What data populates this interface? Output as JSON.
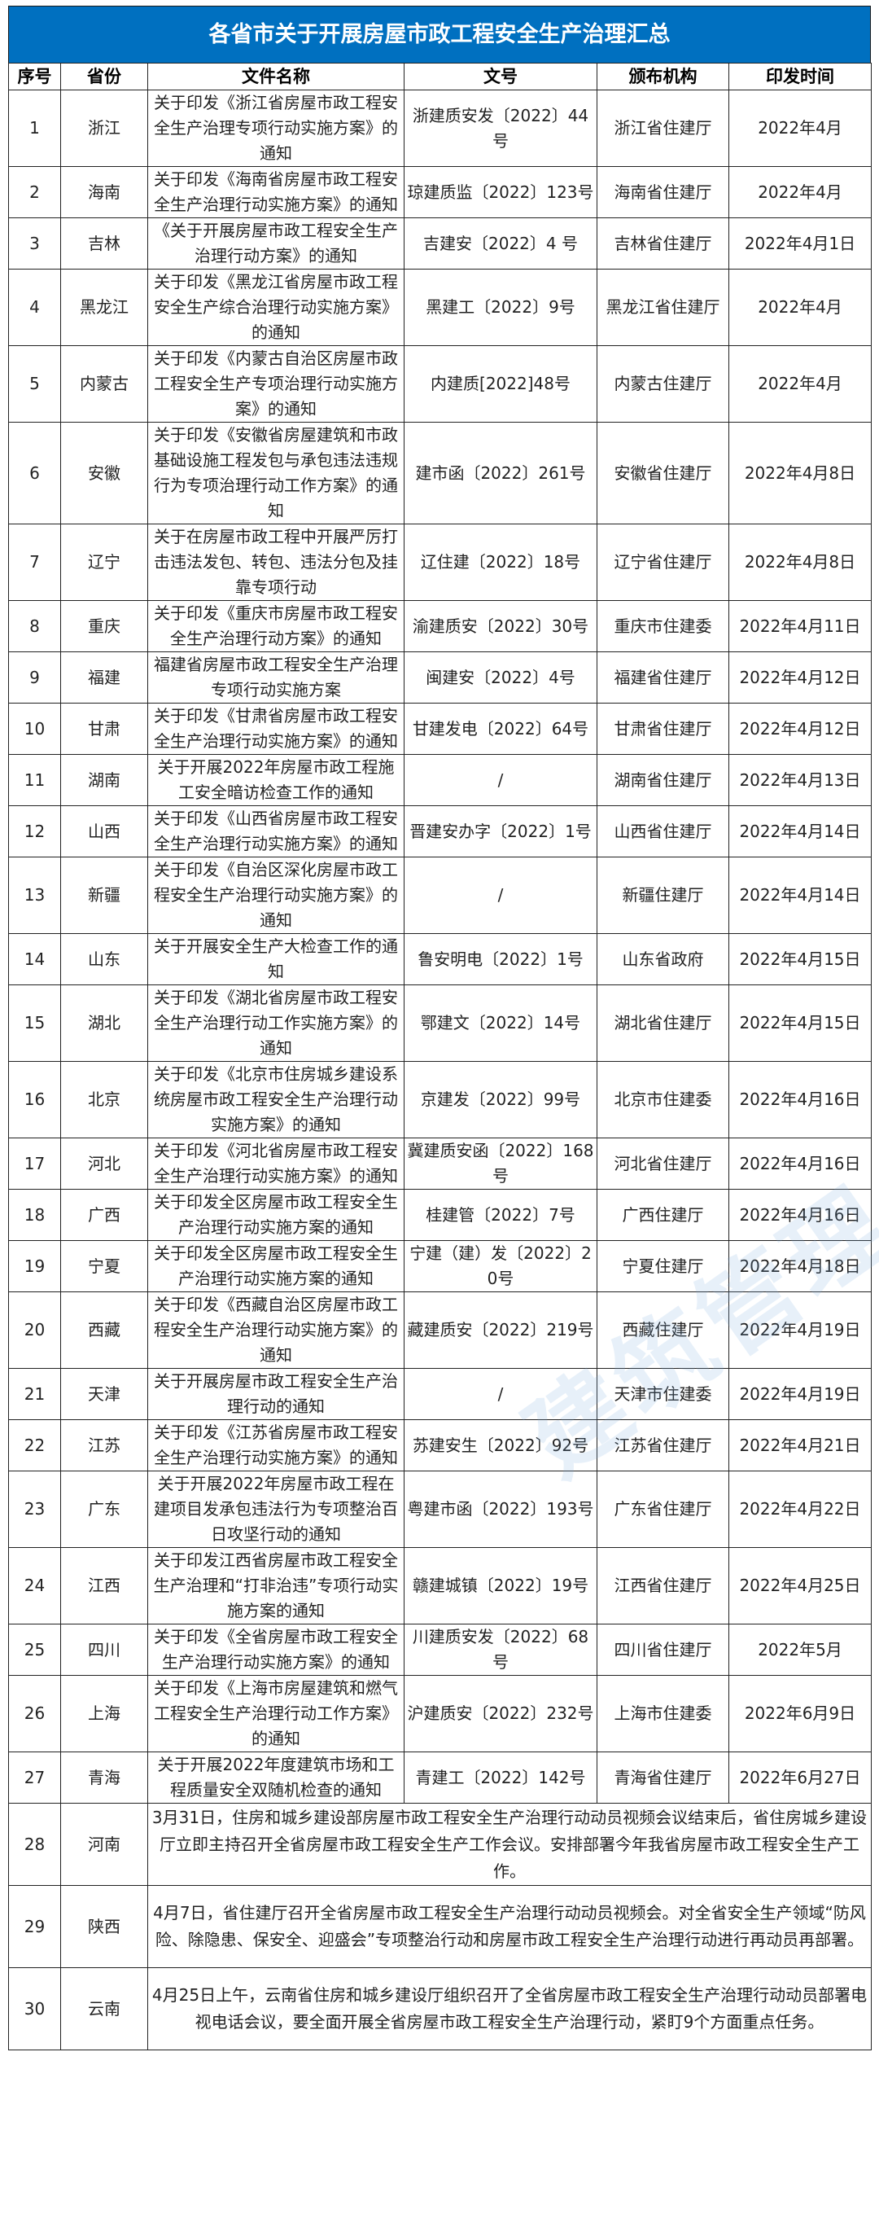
{
  "title": "各省市关于开展房屋市政工程安全生产治理汇总",
  "watermark": "建筑管理",
  "colors": {
    "title_bg": "#0070C0",
    "title_text": "#FFFFFF",
    "border": "#222222"
  },
  "columns": [
    "序号",
    "省份",
    "文件名称",
    "文号",
    "颁布机构",
    "印发时间"
  ],
  "rows": [
    [
      "1",
      "浙江",
      "关于印发《浙江省房屋市政工程安全生产治理专项行动实施方案》的通知",
      "浙建质安发〔2022〕44号",
      "浙江省住建厅",
      "2022年4月"
    ],
    [
      "2",
      "海南",
      "关于印发《海南省房屋市政工程安全生产治理行动实施方案》的通知",
      "琼建质监〔2022〕123号",
      "海南省住建厅",
      "2022年4月"
    ],
    [
      "3",
      "吉林",
      "《关于开展房屋市政工程安全生产治理行动方案》的通知",
      "吉建安〔2022〕4 号",
      "吉林省住建厅",
      "2022年4月1日"
    ],
    [
      "4",
      "黑龙江",
      "关于印发《黑龙江省房屋市政工程安全生产综合治理行动实施方案》的通知",
      "黑建工〔2022〕9号",
      "黑龙江省住建厅",
      "2022年4月"
    ],
    [
      "5",
      "内蒙古",
      "关于印发《内蒙古自治区房屋市政工程安全生产专项治理行动实施方案》的通知",
      "内建质[2022]48号",
      "内蒙古住建厅",
      "2022年4月"
    ],
    [
      "6",
      "安徽",
      "关于印发《安徽省房屋建筑和市政基础设施工程发包与承包违法违规行为专项治理行动工作方案》的通知",
      "建市函〔2022〕261号",
      "安徽省住建厅",
      "2022年4月8日"
    ],
    [
      "7",
      "辽宁",
      "关于在房屋市政工程中开展严厉打击违法发包、转包、违法分包及挂靠专项行动",
      "辽住建〔2022〕18号",
      "辽宁省住建厅",
      "2022年4月8日"
    ],
    [
      "8",
      "重庆",
      "关于印发《重庆市房屋市政工程安全生产治理行动方案》的通知",
      "渝建质安〔2022〕30号",
      "重庆市住建委",
      "2022年4月11日"
    ],
    [
      "9",
      "福建",
      "福建省房屋市政工程安全生产治理专项行动实施方案",
      "闽建安〔2022〕4号",
      "福建省住建厅",
      "2022年4月12日"
    ],
    [
      "10",
      "甘肃",
      "关于印发《甘肃省房屋市政工程安全生产治理行动实施方案》的通知",
      "甘建发电〔2022〕64号",
      "甘肃省住建厅",
      "2022年4月12日"
    ],
    [
      "11",
      "湖南",
      "关于开展2022年房屋市政工程施工安全暗访检查工作的通知",
      "/",
      "湖南省住建厅",
      "2022年4月13日"
    ],
    [
      "12",
      "山西",
      "关于印发《山西省房屋市政工程安全生产治理行动实施方案》的通知",
      "晋建安办字〔2022〕1号",
      "山西省住建厅",
      "2022年4月14日"
    ],
    [
      "13",
      "新疆",
      "关于印发《自治区深化房屋市政工程安全生产治理行动实施方案》的通知",
      "/",
      "新疆住建厅",
      "2022年4月14日"
    ],
    [
      "14",
      "山东",
      "关于开展安全生产大检查工作的通知",
      "鲁安明电〔2022〕1号",
      "山东省政府",
      "2022年4月15日"
    ],
    [
      "15",
      "湖北",
      "关于印发《湖北省房屋市政工程安全生产治理行动工作实施方案》的通知",
      "鄂建文〔2022〕14号",
      "湖北省住建厅",
      "2022年4月15日"
    ],
    [
      "16",
      "北京",
      "关于印发《北京市住房城乡建设系统房屋市政工程安全生产治理行动实施方案》的通知",
      "京建发〔2022〕99号",
      "北京市住建委",
      "2022年4月16日"
    ],
    [
      "17",
      "河北",
      "关于印发《河北省房屋市政工程安全生产治理行动实施方案》的通知",
      "冀建质安函〔2022〕168号",
      "河北省住建厅",
      "2022年4月16日"
    ],
    [
      "18",
      "广西",
      "关于印发全区房屋市政工程安全生产治理行动实施方案的通知",
      "桂建管〔2022〕7号",
      "广西住建厅",
      "2022年4月16日"
    ],
    [
      "19",
      "宁夏",
      "关于印发全区房屋市政工程安全生产治理行动实施方案的通知",
      "宁建（建）发〔2022〕20号",
      "宁夏住建厅",
      "2022年4月18日"
    ],
    [
      "20",
      "西藏",
      "关于印发《西藏自治区房屋市政工程安全生产治理行动实施方案》的通知",
      "藏建质安〔2022〕219号",
      "西藏住建厅",
      "2022年4月19日"
    ],
    [
      "21",
      "天津",
      "关于开展房屋市政工程安全生产治理行动的通知",
      "/",
      "天津市住建委",
      "2022年4月19日"
    ],
    [
      "22",
      "江苏",
      "关于印发《江苏省房屋市政工程安全生产治理行动实施方案》的通知",
      "苏建安生〔2022〕92号",
      "江苏省住建厅",
      "2022年4月21日"
    ],
    [
      "23",
      "广东",
      "关于开展2022年房屋市政工程在建项目发承包违法行为专项整治百日攻坚行动的通知",
      "粤建市函〔2022〕193号",
      "广东省住建厅",
      "2022年4月22日"
    ],
    [
      "24",
      "江西",
      "关于印发江西省房屋市政工程安全生产治理和“打非治违”专项行动实施方案的通知",
      "赣建城镇〔2022〕19号",
      "江西省住建厅",
      "2022年4月25日"
    ],
    [
      "25",
      "四川",
      "关于印发《全省房屋市政工程安全生产治理行动实施方案》的通知",
      "川建质安发〔2022〕68号",
      "四川省住建厅",
      "2022年5月"
    ],
    [
      "26",
      "上海",
      "关于印发《上海市房屋建筑和燃气工程安全生产治理行动工作方案》的通知",
      "沪建质安〔2022〕232号",
      "上海市住建委",
      "2022年6月9日"
    ],
    [
      "27",
      "青海",
      "关于开展2022年度建筑市场和工程质量安全双随机检查的通知",
      "青建工〔2022〕142号",
      "青海省住建厅",
      "2022年6月27日"
    ]
  ],
  "notes": [
    [
      "28",
      "河南",
      "3月31日，住房和城乡建设部房屋市政工程安全生产治理行动动员视频会议结束后，省住房城乡建设厅立即主持召开全省房屋市政工程安全生产工作会议。安排部署今年我省房屋市政工程安全生产工作。"
    ],
    [
      "29",
      "陕西",
      "4月7日，省住建厅召开全省房屋市政工程安全生产治理行动动员视频会。对全省安全生产领域“防风险、除隐患、保安全、迎盛会”专项整治行动和房屋市政工程安全生产治理行动进行再动员再部署。"
    ],
    [
      "30",
      "云南",
      "4月25日上午，云南省住房和城乡建设厅组织召开了全省房屋市政工程安全生产治理行动动员部署电视电话会议，要全面开展全省房屋市政工程安全生产治理行动，紧盯9个方面重点任务。"
    ]
  ]
}
